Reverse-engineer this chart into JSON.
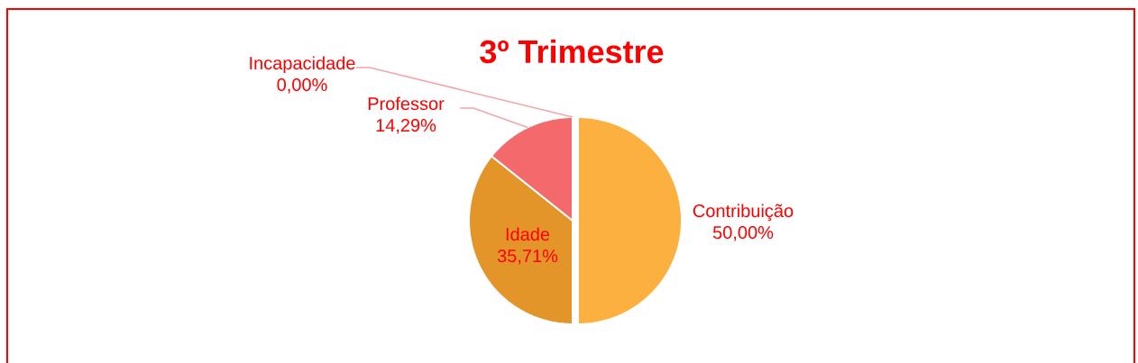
{
  "chart_data": {
    "type": "pie",
    "title": "3º Trimestre",
    "categories": [
      "Contribuição",
      "Idade",
      "Professor",
      "Incapacidade"
    ],
    "values": [
      50.0,
      35.71,
      14.29,
      0.0
    ],
    "value_labels": [
      "50,00%",
      "35,71%",
      "14,29%",
      "0,00%"
    ],
    "colors": [
      "#fbb040",
      "#e3952a",
      "#f46a6c",
      "#f8a0a0"
    ],
    "legend": false
  }
}
